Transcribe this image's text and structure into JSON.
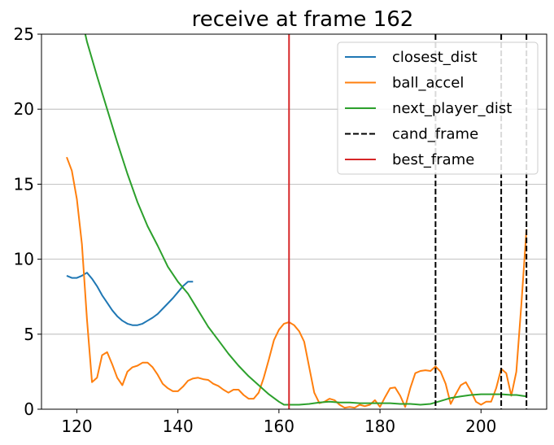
{
  "chart_data": {
    "type": "line",
    "title": "receive at frame 162",
    "xlabel": "",
    "ylabel": "",
    "xlim": [
      113,
      213
    ],
    "ylim": [
      0,
      25
    ],
    "x_ticks": [
      120,
      140,
      160,
      180,
      200
    ],
    "y_ticks": [
      0,
      5,
      10,
      15,
      20,
      25
    ],
    "grid": "horizontal",
    "legend_position": "top-right",
    "series": [
      {
        "name": "closest_dist",
        "color": "#1f77b4",
        "x": [
          118,
          119,
          120,
          121,
          122,
          123,
          124,
          125,
          126,
          127,
          128,
          129,
          130,
          131,
          132,
          133,
          134,
          135,
          136,
          137,
          138,
          139,
          140,
          141,
          142,
          143
        ],
        "y": [
          8.9,
          8.75,
          8.75,
          8.9,
          9.1,
          8.7,
          8.2,
          7.6,
          7.1,
          6.6,
          6.2,
          5.9,
          5.7,
          5.6,
          5.6,
          5.7,
          5.9,
          6.1,
          6.35,
          6.7,
          7.05,
          7.4,
          7.8,
          8.2,
          8.5,
          8.5
        ]
      },
      {
        "name": "ball_accel",
        "color": "#ff7f0e",
        "x": [
          118,
          119,
          120,
          121,
          122,
          123,
          124,
          125,
          126,
          127,
          128,
          129,
          130,
          131,
          132,
          133,
          134,
          135,
          136,
          137,
          138,
          139,
          140,
          141,
          142,
          143,
          144,
          145,
          146,
          147,
          148,
          149,
          150,
          151,
          152,
          153,
          154,
          155,
          156,
          157,
          158,
          159,
          160,
          161,
          162,
          163,
          164,
          165,
          166,
          167,
          168,
          169,
          170,
          171,
          172,
          173,
          174,
          175,
          176,
          177,
          178,
          179,
          180,
          181,
          182,
          183,
          184,
          185,
          186,
          187,
          188,
          189,
          190,
          191,
          192,
          193,
          194,
          195,
          196,
          197,
          198,
          199,
          200,
          201,
          202,
          203,
          204,
          205,
          206,
          207,
          208,
          209
        ],
        "y": [
          16.8,
          15.9,
          14.0,
          11.0,
          6.0,
          1.8,
          2.1,
          3.6,
          3.8,
          3.0,
          2.1,
          1.6,
          2.5,
          2.8,
          2.9,
          3.1,
          3.1,
          2.8,
          2.3,
          1.7,
          1.4,
          1.2,
          1.2,
          1.5,
          1.9,
          2.05,
          2.1,
          2.0,
          1.95,
          1.7,
          1.55,
          1.3,
          1.1,
          1.3,
          1.3,
          0.95,
          0.7,
          0.7,
          1.1,
          2.1,
          3.3,
          4.6,
          5.3,
          5.7,
          5.8,
          5.6,
          5.2,
          4.5,
          2.8,
          1.1,
          0.4,
          0.5,
          0.7,
          0.6,
          0.3,
          0.1,
          0.15,
          0.1,
          0.3,
          0.2,
          0.3,
          0.6,
          0.15,
          0.8,
          1.4,
          1.45,
          0.9,
          0.15,
          1.4,
          2.4,
          2.55,
          2.6,
          2.55,
          2.85,
          2.5,
          1.7,
          0.35,
          1.0,
          1.6,
          1.8,
          1.2,
          0.5,
          0.3,
          0.5,
          0.5,
          1.4,
          2.7,
          2.4,
          0.9,
          2.5,
          7.0,
          12.0
        ]
      },
      {
        "name": "next_player_dist",
        "color": "#2ca02c",
        "x": [
          120,
          122,
          124,
          126,
          128,
          130,
          132,
          134,
          136,
          138,
          140,
          142,
          144,
          146,
          148,
          150,
          152,
          154,
          156,
          158,
          160,
          161,
          162,
          164,
          166,
          168,
          170,
          172,
          174,
          176,
          178,
          180,
          182,
          184,
          186,
          188,
          190,
          192,
          194,
          196,
          198,
          200,
          202,
          204,
          206,
          207,
          208,
          209
        ],
        "y": [
          27.5,
          24.5,
          22.2,
          20.0,
          17.8,
          15.7,
          13.8,
          12.2,
          10.9,
          9.5,
          8.5,
          7.7,
          6.6,
          5.5,
          4.6,
          3.7,
          2.9,
          2.2,
          1.6,
          1.0,
          0.5,
          0.3,
          0.3,
          0.3,
          0.35,
          0.45,
          0.5,
          0.45,
          0.45,
          0.4,
          0.4,
          0.4,
          0.4,
          0.35,
          0.35,
          0.3,
          0.35,
          0.55,
          0.75,
          0.85,
          0.95,
          1.0,
          1.0,
          1.0,
          0.95,
          0.95,
          0.9,
          0.85
        ]
      }
    ],
    "vertical_lines": [
      {
        "series": "cand_frame",
        "x": 191,
        "color": "#000000",
        "style": "dashed"
      },
      {
        "series": "cand_frame",
        "x": 204,
        "color": "#000000",
        "style": "dashed"
      },
      {
        "series": "cand_frame",
        "x": 209,
        "color": "#000000",
        "style": "dashed"
      },
      {
        "series": "best_frame",
        "x": 162,
        "color": "#d62728",
        "style": "solid"
      }
    ],
    "legend": [
      {
        "label": "closest_dist",
        "color": "#1f77b4",
        "style": "solid"
      },
      {
        "label": "ball_accel",
        "color": "#ff7f0e",
        "style": "solid"
      },
      {
        "label": "next_player_dist",
        "color": "#2ca02c",
        "style": "solid"
      },
      {
        "label": "cand_frame",
        "color": "#000000",
        "style": "dashed"
      },
      {
        "label": "best_frame",
        "color": "#d62728",
        "style": "solid"
      }
    ]
  }
}
